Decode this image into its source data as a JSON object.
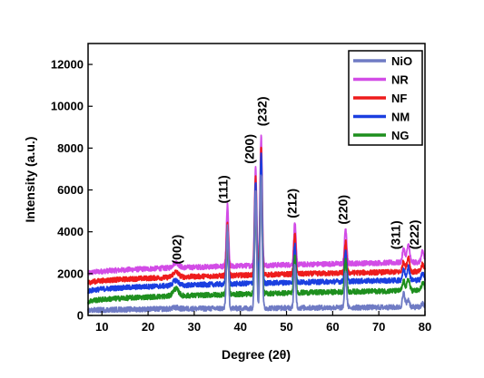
{
  "chart_data": {
    "type": "line",
    "title": "",
    "xlabel": "Degree (2θ)",
    "ylabel": "Intensity (a.u.)",
    "xlim": [
      7,
      80
    ],
    "ylim": [
      0,
      13000
    ],
    "xticks": [
      10,
      20,
      30,
      40,
      50,
      60,
      70,
      80
    ],
    "yticks": [
      0,
      2000,
      4000,
      6000,
      8000,
      10000,
      12000
    ],
    "grid": false,
    "legend_position": "top-right",
    "series": [
      {
        "name": "NiO",
        "color": "#6f7bc4",
        "baseline_start": 200,
        "baseline_end": 400,
        "peaks": {
          "26": 60,
          "37.2": 3900,
          "43.3": 5600,
          "44.5": 6400,
          "51.8": 2000,
          "62.8": 1700,
          "75.4": 650,
          "76.4": 350,
          "79.5": 150
        }
      },
      {
        "name": "NR",
        "color": "#d24ce6",
        "baseline_start": 1900,
        "baseline_end": 2550,
        "peaks": {
          "26": 250,
          "37.2": 2900,
          "43.3": 4700,
          "44.5": 6200,
          "51.8": 2000,
          "62.8": 1700,
          "75.4": 650,
          "76.4": 850,
          "79.5": 500
        }
      },
      {
        "name": "NF",
        "color": "#ee1c1c",
        "baseline_start": 1450,
        "baseline_end": 2100,
        "peaks": {
          "26": 250,
          "37.2": 2600,
          "43.3": 4700,
          "44.5": 6100,
          "51.8": 1900,
          "62.8": 1500,
          "75.4": 500,
          "76.4": 700,
          "79.5": 350
        }
      },
      {
        "name": "NM",
        "color": "#1b3fe0",
        "baseline_start": 1050,
        "baseline_end": 1700,
        "peaks": {
          "26": 250,
          "37.2": 2500,
          "43.3": 4800,
          "44.5": 6200,
          "51.8": 1800,
          "62.8": 1500,
          "75.4": 500,
          "76.4": 650,
          "79.5": 350
        }
      },
      {
        "name": "NG",
        "color": "#1e8f1e",
        "baseline_start": 550,
        "baseline_end": 1200,
        "peaks": {
          "26": 350,
          "37.2": 2300,
          "43.3": 4200,
          "44.5": 5500,
          "51.8": 1700,
          "62.8": 1500,
          "75.4": 450,
          "76.4": 550,
          "79.5": 350
        }
      }
    ],
    "annotations": [
      {
        "text": "(002)",
        "x": 27.2,
        "y": 2450
      },
      {
        "text": "(111)",
        "x": 37.2,
        "y": 5350
      },
      {
        "text": "(200)",
        "x": 42.9,
        "y": 7250
      },
      {
        "text": "(232)",
        "x": 45.7,
        "y": 9050
      },
      {
        "text": "(212)",
        "x": 52.2,
        "y": 4650
      },
      {
        "text": "(220)",
        "x": 63.2,
        "y": 4350
      },
      {
        "text": "(311)",
        "x": 74.6,
        "y": 3150
      },
      {
        "text": "(222)",
        "x": 78.6,
        "y": 3150
      }
    ]
  }
}
